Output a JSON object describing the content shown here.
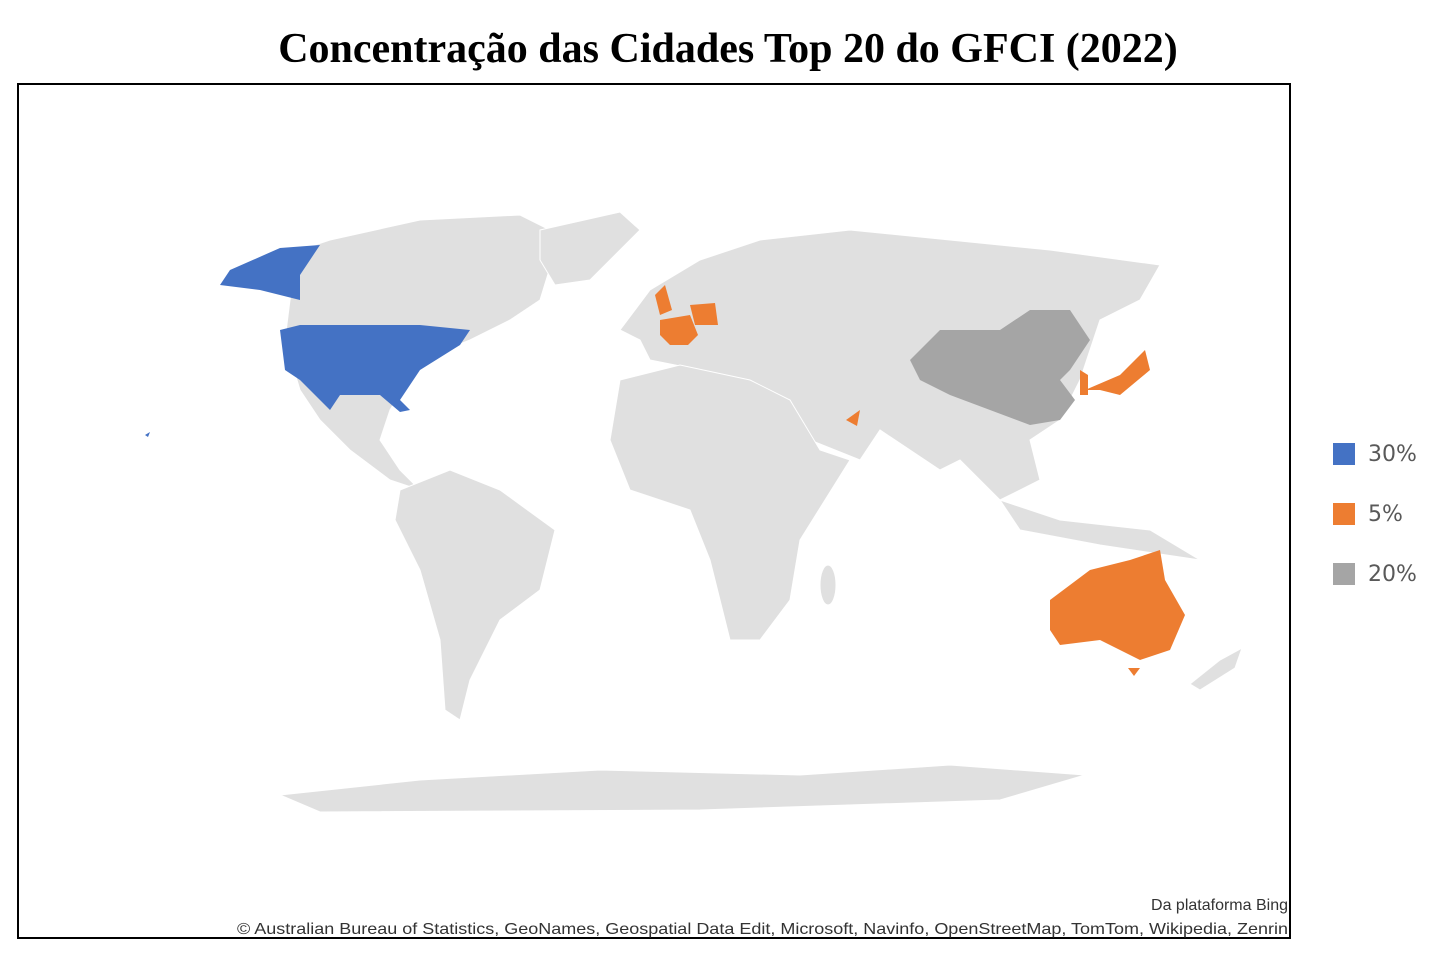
{
  "chart_data": {
    "type": "choropleth",
    "title": "Concentração das Cidades Top 20 do GFCI (2022)",
    "legend": [
      {
        "value": 30,
        "label": "30%",
        "color": "#4472c4"
      },
      {
        "value": 5,
        "label": "5%",
        "color": "#ed7d31"
      },
      {
        "value": 20,
        "label": "20%",
        "color": "#a5a5a5"
      }
    ],
    "source": "Da plataforma Bing",
    "attribution": "© Australian Bureau of Statistics, GeoNames, Geospatial Data Edit, Microsoft, Navinfo, OpenStreetMap, TomTom, Wikipedia, Zenrin"
  }
}
